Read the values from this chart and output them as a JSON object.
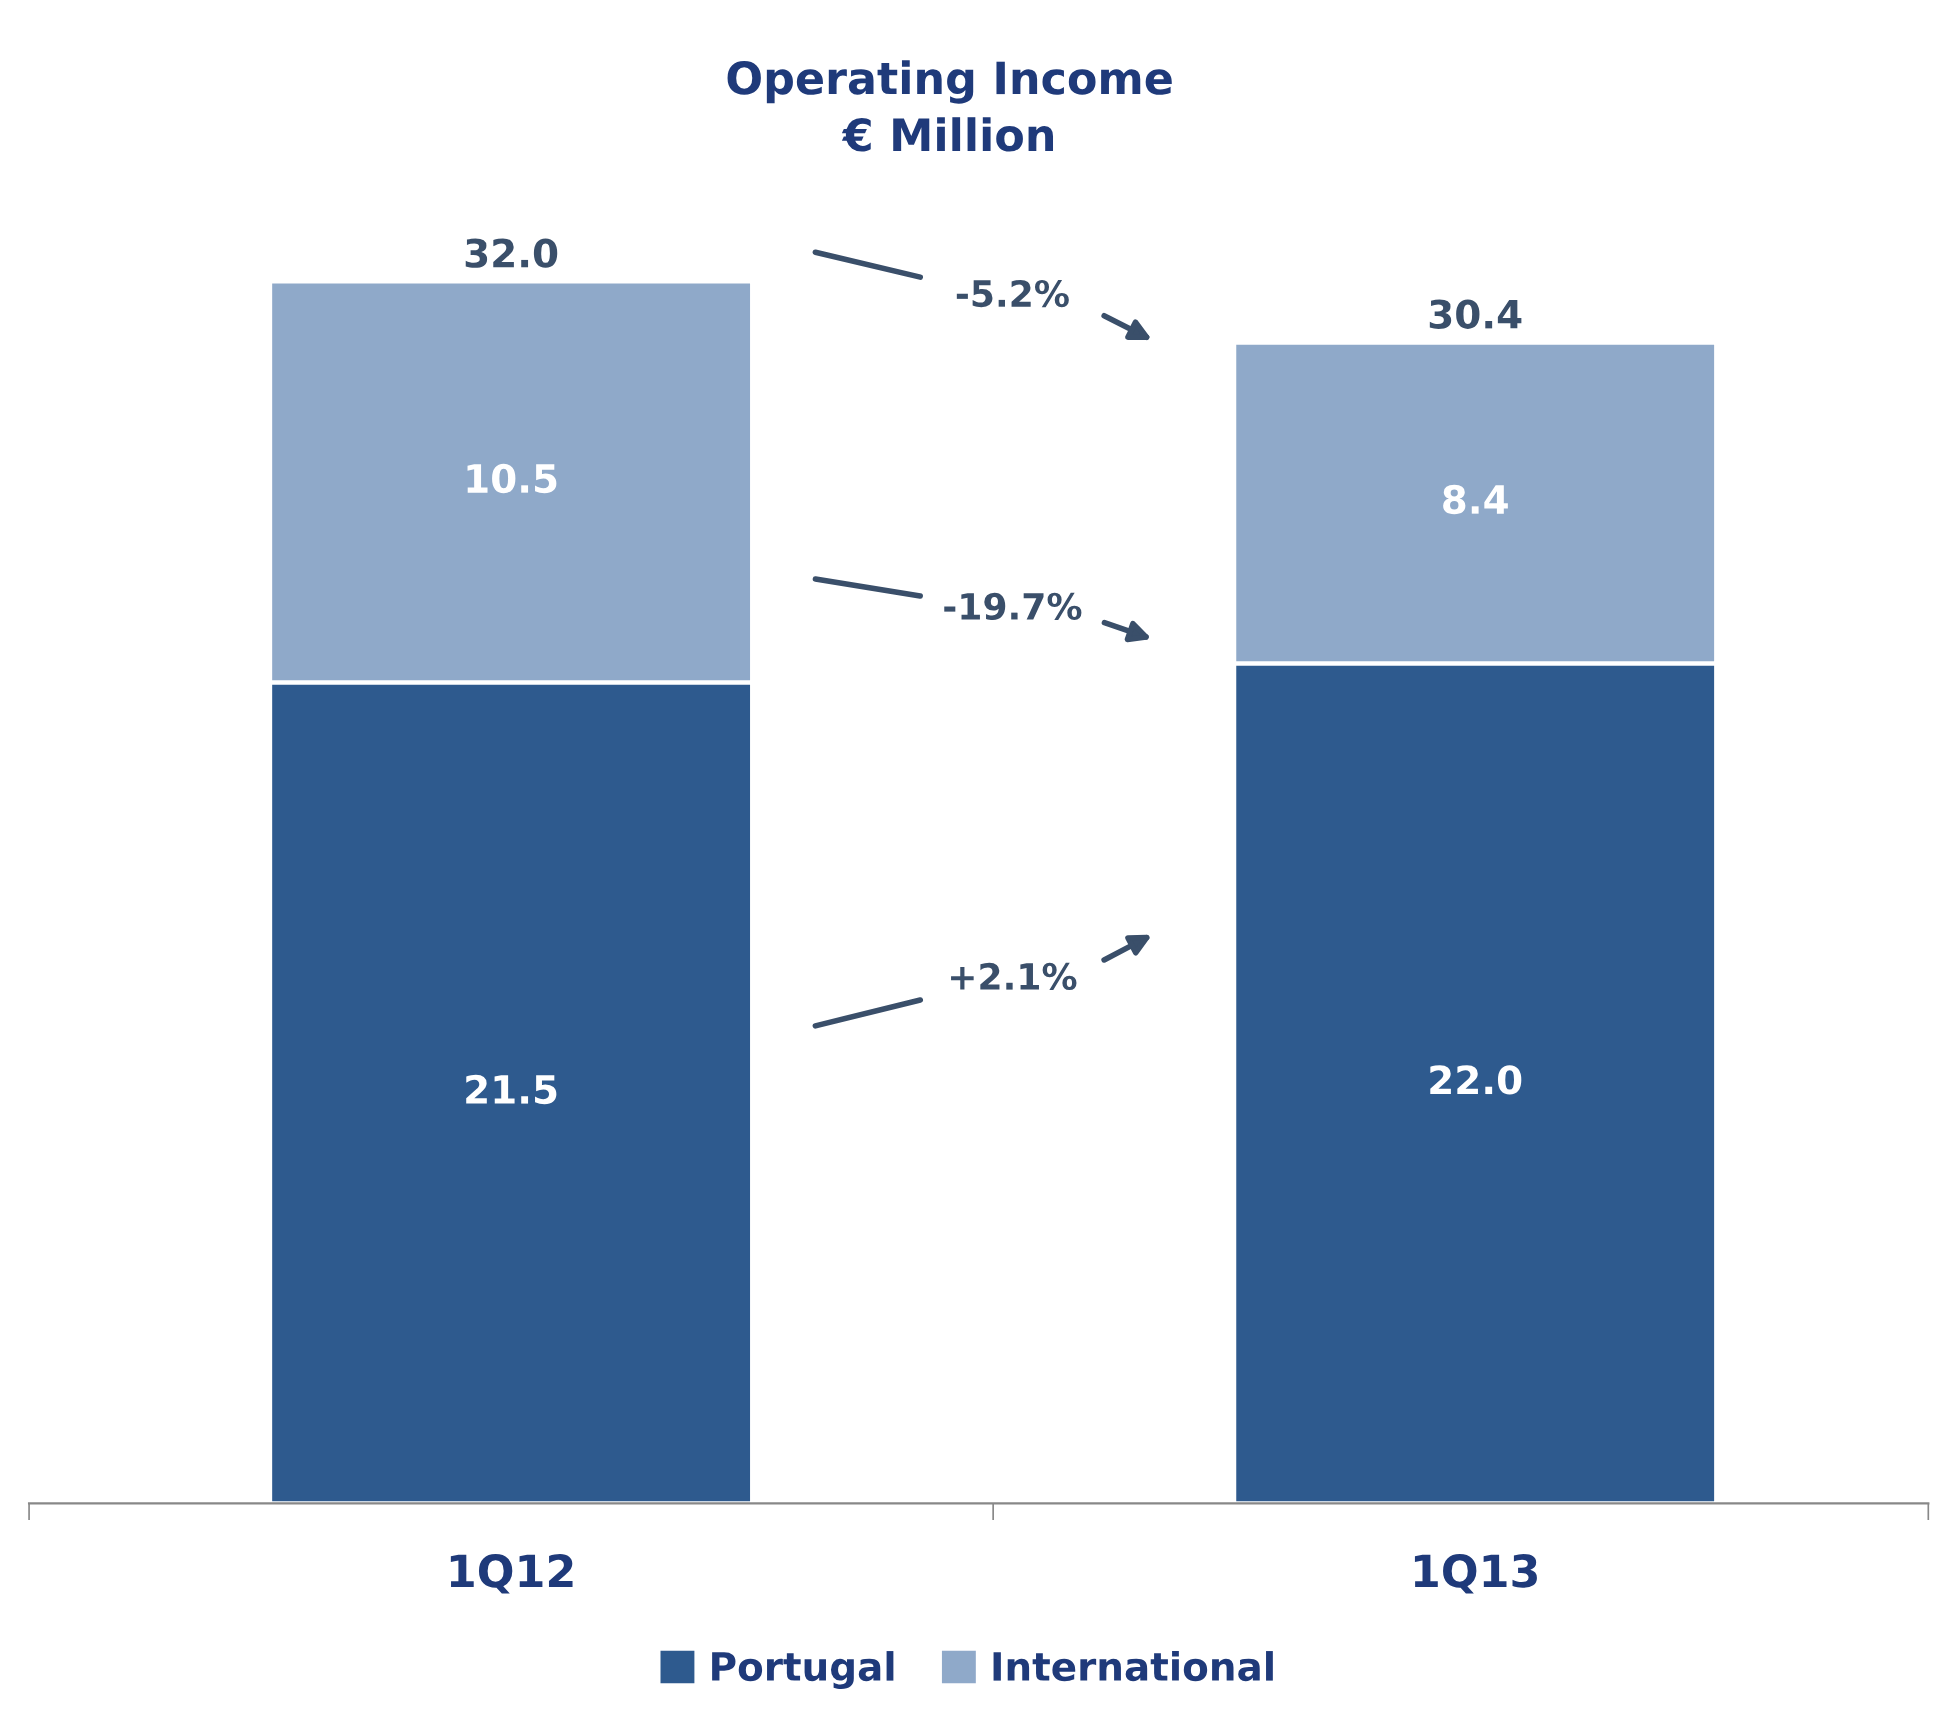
{
  "chart_data": {
    "type": "bar",
    "title": "Operating Income\n€ Million",
    "categories": [
      "1Q12",
      "1Q13"
    ],
    "stacked": true,
    "series": [
      {
        "name": "Portugal",
        "color": "#2e5a8e",
        "values": [
          21.5,
          22.0
        ],
        "value_labels": [
          "21.5",
          "22.0"
        ]
      },
      {
        "name": "International",
        "color": "#8fa9c9",
        "values": [
          10.5,
          8.4
        ],
        "value_labels": [
          "10.5",
          "8.4"
        ]
      }
    ],
    "totals": [
      "32.0",
      "30.4"
    ],
    "annotations": [
      "-5.2%",
      "-19.7%",
      "+2.1%"
    ],
    "legend": "bottom",
    "grid": false
  }
}
